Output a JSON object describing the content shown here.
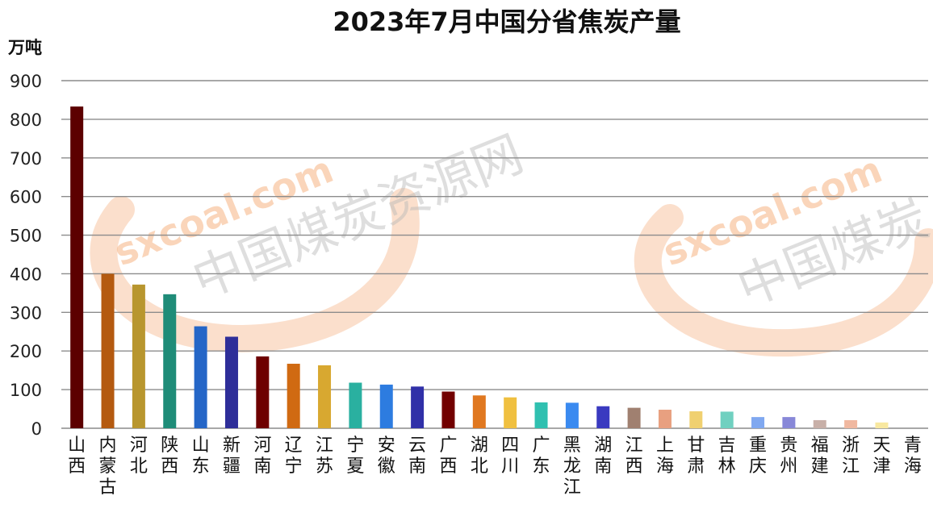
{
  "chart_data": {
    "type": "bar",
    "title": "2023年7月中国分省焦炭产量",
    "ylabel": "万吨",
    "xlabel": "",
    "ylim": [
      0,
      900
    ],
    "yticks": [
      0,
      100,
      200,
      300,
      400,
      500,
      600,
      700,
      800,
      900
    ],
    "grid": true,
    "legend": "none",
    "categories": [
      "山西",
      "内蒙古",
      "河北",
      "陕西",
      "山东",
      "新疆",
      "河南",
      "辽宁",
      "江苏",
      "宁夏",
      "安徽",
      "云南",
      "广西",
      "湖北",
      "四川",
      "广东",
      "黑龙江",
      "湖南",
      "江西",
      "上海",
      "甘肃",
      "吉林",
      "重庆",
      "贵州",
      "福建",
      "浙江",
      "天津",
      "青海"
    ],
    "values": [
      833,
      400,
      372,
      347,
      264,
      237,
      186,
      167,
      163,
      118,
      113,
      108,
      95,
      85,
      80,
      67,
      66,
      57,
      53,
      48,
      44,
      43,
      29,
      29,
      21,
      21,
      15,
      0
    ],
    "colors": [
      "#5c0000",
      "#b45a10",
      "#b8962e",
      "#1f8c78",
      "#2566c7",
      "#2e2e99",
      "#6e0000",
      "#d06a12",
      "#d8a830",
      "#2ab0a0",
      "#2d7ce0",
      "#3030a8",
      "#720000",
      "#e07820",
      "#f0c040",
      "#30c0b0",
      "#3a8af0",
      "#3a3ac0",
      "#a08070",
      "#e8a080",
      "#f0d070",
      "#70d0c0",
      "#80a8f0",
      "#8888d8",
      "#c8b0a8",
      "#f0b8a0",
      "#f8e8a0",
      "#c0e8e0"
    ],
    "watermark": [
      "sxcoal.com",
      "中国煤炭资源网",
      "sxcoal.com",
      "中国煤炭"
    ]
  }
}
